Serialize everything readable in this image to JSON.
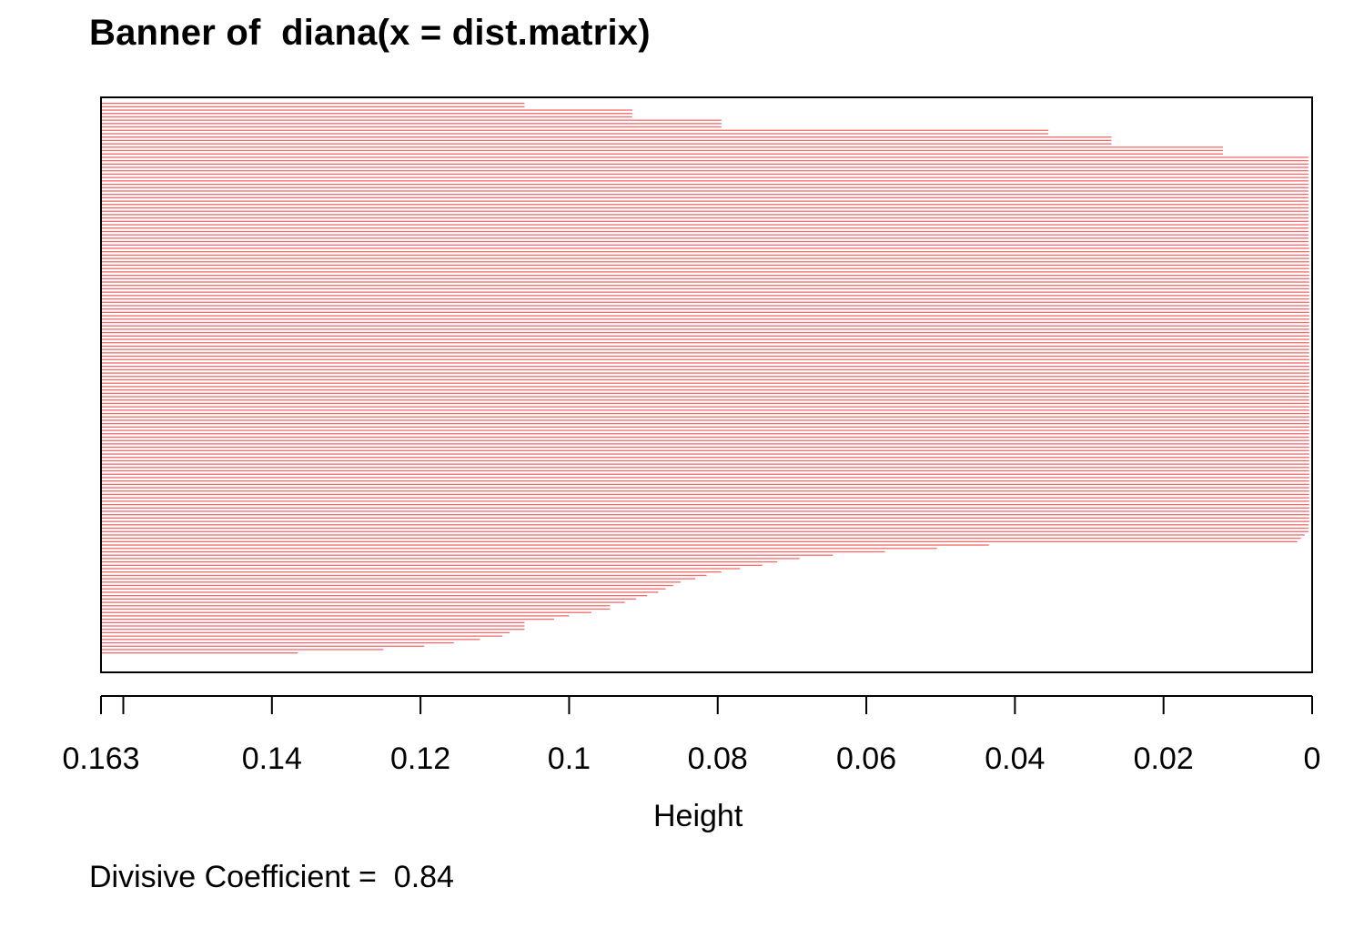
{
  "chart_data": {
    "type": "bar",
    "orientation": "horizontal",
    "title": "Banner of  diana(x = dist.matrix)",
    "xlabel": "Height",
    "ylabel": "",
    "x_reversed": true,
    "xlim": [
      0.163,
      0
    ],
    "ticks": [
      {
        "value": 0.163,
        "label": "0.163"
      },
      {
        "value": 0.16,
        "label": ""
      },
      {
        "value": 0.14,
        "label": "0.14"
      },
      {
        "value": 0.12,
        "label": "0.12"
      },
      {
        "value": 0.1,
        "label": "0.1"
      },
      {
        "value": 0.08,
        "label": "0.08"
      },
      {
        "value": 0.06,
        "label": "0.06"
      },
      {
        "value": 0.04,
        "label": "0.04"
      },
      {
        "value": 0.02,
        "label": "0.02"
      },
      {
        "value": 0,
        "label": "0"
      }
    ],
    "bar_color": "#f26b6b",
    "bar_count": 170,
    "heights": [
      0.163,
      0.106,
      0.106,
      0.0915,
      0.0915,
      0.0915,
      0.0795,
      0.0795,
      0.0795,
      0.0355,
      0.0355,
      0.027,
      0.027,
      0.027,
      0.012,
      0.012,
      0.012,
      0.0005,
      0.0005,
      0.0005,
      0.0005,
      0.0005,
      0.0005,
      0.0005,
      0.0005,
      0.0005,
      0.0005,
      0.0005,
      0.0005,
      0.0005,
      0.0005,
      0.0005,
      0.0005,
      0.0005,
      0.0005,
      0.0005,
      0.0005,
      0.0005,
      0.0005,
      0.0005,
      0.0005,
      0.0005,
      0.0005,
      0.0005,
      0.0004,
      0.0004,
      0.0004,
      0.0004,
      0.0004,
      0.0004,
      0.0004,
      0.0004,
      0.0004,
      0.0004,
      0.0004,
      0.0004,
      0.0004,
      0.0004,
      0.0004,
      0.0004,
      0.0004,
      0.0004,
      0.0004,
      0.0004,
      0.0004,
      0.0004,
      0.0004,
      0.0004,
      0.0004,
      0.0004,
      0.0004,
      0.0004,
      0.0004,
      0.0004,
      0.0004,
      0.0004,
      0.0004,
      0.0004,
      0.0004,
      0.0004,
      0.0004,
      0.0004,
      0.0004,
      0.0004,
      0.0004,
      0.0004,
      0.0004,
      0.0004,
      0.0004,
      0.0004,
      0.0004,
      0.0004,
      0.0004,
      0.0004,
      0.0004,
      0.0004,
      0.0004,
      0.0004,
      0.0004,
      0.0004,
      0.0004,
      0.0004,
      0.0004,
      0.0004,
      0.0004,
      0.0004,
      0.0004,
      0.0004,
      0.0004,
      0.0004,
      0.0004,
      0.0004,
      0.0004,
      0.0004,
      0.0004,
      0.0004,
      0.0004,
      0.0004,
      0.0004,
      0.0004,
      0.0004,
      0.0004,
      0.0004,
      0.0004,
      0.0004,
      0.0004,
      0.0005,
      0.0005,
      0.0005,
      0.001,
      0.0015,
      0.002,
      0.0435,
      0.0505,
      0.0575,
      0.0645,
      0.069,
      0.072,
      0.074,
      0.077,
      0.0795,
      0.0815,
      0.083,
      0.085,
      0.086,
      0.087,
      0.088,
      0.0895,
      0.091,
      0.0925,
      0.0945,
      0.0945,
      0.097,
      0.1,
      0.102,
      0.106,
      0.106,
      0.106,
      0.108,
      0.109,
      0.112,
      0.1155,
      0.1195,
      0.125,
      0.1365,
      0.163,
      0.163,
      0.163,
      0.163,
      0.163
    ]
  },
  "footer": {
    "coefficient_text": "Divisive Coefficient =  0.84"
  }
}
